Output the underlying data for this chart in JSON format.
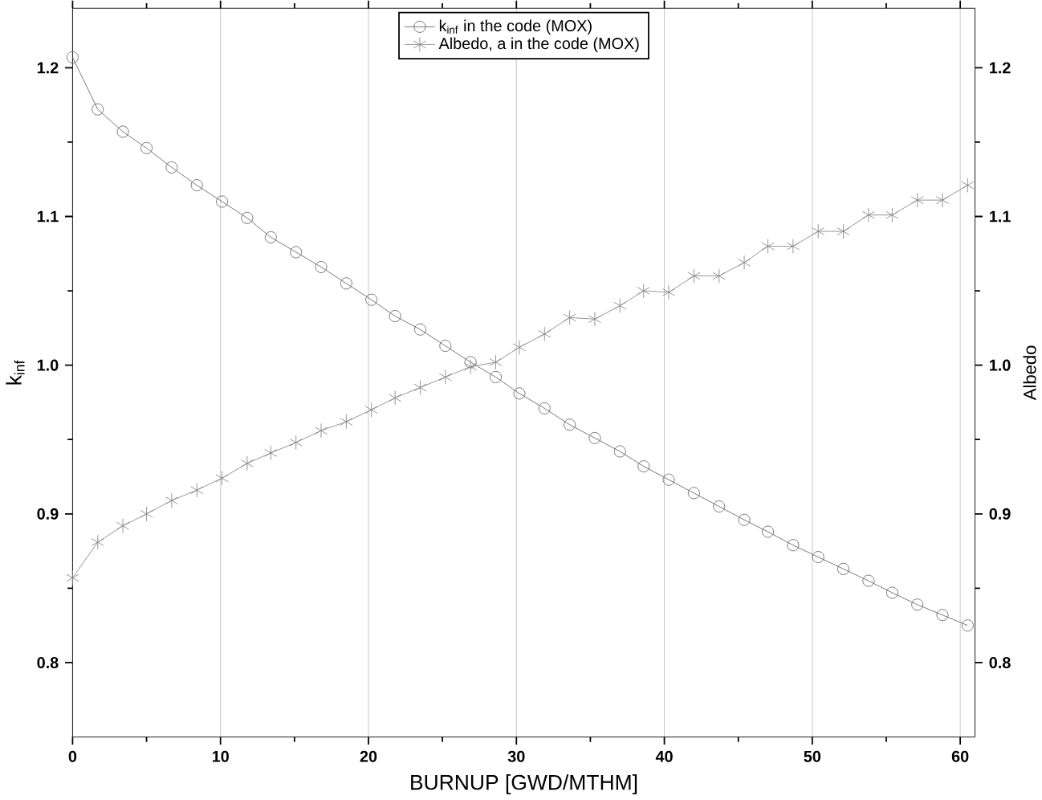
{
  "chart_data": {
    "type": "line",
    "xlabel": "BURNUP [GWD/MTHM]",
    "ylabel": "k$_{inf}$",
    "y2label": "Albedo",
    "x": [
      0,
      1.7,
      3.4,
      5.0,
      6.7,
      8.4,
      10.1,
      11.8,
      13.4,
      15.1,
      16.8,
      18.5,
      20.2,
      21.8,
      23.5,
      25.2,
      26.9,
      28.6,
      30.2,
      31.9,
      33.6,
      35.3,
      37.0,
      38.6,
      40.3,
      42.0,
      43.7,
      45.4,
      47.0,
      48.7,
      50.4,
      52.1,
      53.8,
      55.4,
      57.1,
      58.8,
      60.5
    ],
    "series": [
      {
        "name": "k$_{inf}$ in the code (MOX)",
        "color": "#666666",
        "marker": "circle",
        "values": [
          1.207,
          1.172,
          1.157,
          1.146,
          1.133,
          1.121,
          1.11,
          1.099,
          1.086,
          1.076,
          1.066,
          1.055,
          1.044,
          1.033,
          1.024,
          1.013,
          1.002,
          0.992,
          0.981,
          0.971,
          0.96,
          0.951,
          0.942,
          0.932,
          0.923,
          0.914,
          0.905,
          0.896,
          0.888,
          0.879,
          0.871,
          0.863,
          0.855,
          0.847,
          0.839,
          0.832,
          0.825
        ]
      },
      {
        "name": "Albedo, a in the code (MOX)",
        "color": "#888888",
        "marker": "cross",
        "axis": "y2",
        "values": [
          0.857,
          0.881,
          0.892,
          0.9,
          0.909,
          0.916,
          0.924,
          0.934,
          0.941,
          0.948,
          0.956,
          0.962,
          0.97,
          0.978,
          0.985,
          0.992,
          0.999,
          1.002,
          1.012,
          1.021,
          1.032,
          1.031,
          1.04,
          1.05,
          1.049,
          1.06,
          1.06,
          1.069,
          1.08,
          1.08,
          1.09,
          1.09,
          1.101,
          1.101,
          1.111,
          1.111,
          1.121
        ]
      }
    ],
    "xlim": [
      0,
      61
    ],
    "xticks": [
      0,
      10,
      20,
      30,
      40,
      50,
      60
    ],
    "ylim": [
      0.75,
      1.24
    ],
    "yticks": [
      0.8,
      0.9,
      {
        "value": 1.0,
        "label": "1.0"
      },
      1.1,
      1.2
    ],
    "y2lim": [
      0.75,
      1.24
    ],
    "y2ticks": [
      0.8,
      0.9,
      {
        "value": 1.0,
        "label": "1.0"
      },
      1.1,
      1.2
    ],
    "grid": "x",
    "legend": "top"
  }
}
